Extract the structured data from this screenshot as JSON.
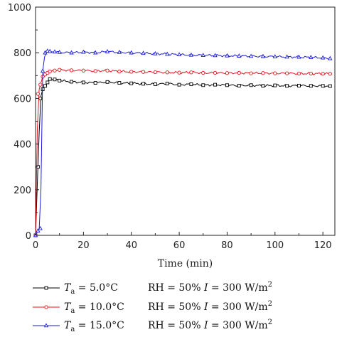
{
  "chart_data": {
    "type": "line",
    "xlabel": "Time (min)",
    "ylabel": "",
    "xlim": [
      0,
      125
    ],
    "ylim": [
      0,
      1000
    ],
    "xticks": [
      0,
      20,
      40,
      60,
      80,
      100,
      120
    ],
    "yticks": [
      0,
      200,
      400,
      600,
      800,
      1000
    ],
    "grid": false,
    "legend_position": "bottom",
    "series": [
      {
        "name": "Ta = 5.0°C   RH = 50% I = 300 W/m2",
        "legend": {
          "t_sym": "T",
          "t_sub": "a",
          "temp": " = 5.0°C",
          "rh": "RH = 50% ",
          "i_sym": "I",
          "i_val": " = 300 W/m",
          "i_sup": "2"
        },
        "color": "#000000",
        "marker": "square",
        "x": [
          0,
          1,
          2,
          3,
          4,
          5,
          6,
          8,
          10,
          15,
          20,
          25,
          30,
          35,
          40,
          45,
          50,
          55,
          60,
          65,
          70,
          75,
          80,
          85,
          90,
          95,
          100,
          105,
          110,
          115,
          120,
          123
        ],
        "y": [
          0,
          300,
          600,
          640,
          655,
          670,
          685,
          683,
          678,
          673,
          670,
          668,
          672,
          668,
          666,
          664,
          662,
          665,
          660,
          662,
          658,
          660,
          658,
          656,
          658,
          655,
          657,
          655,
          656,
          655,
          655,
          654
        ]
      },
      {
        "name": "Ta = 10.0°C   RH = 50% I = 300 W/m2",
        "legend": {
          "t_sym": "T",
          "t_sub": "a",
          "temp": " = 10.0°C",
          "rh": "RH = 50% ",
          "i_sym": "I",
          "i_val": " = 300 W/m",
          "i_sup": "2"
        },
        "color": "#e8141c",
        "marker": "circle",
        "x": [
          0,
          1,
          2,
          3,
          4,
          5,
          6,
          8,
          10,
          15,
          20,
          25,
          30,
          35,
          40,
          45,
          50,
          55,
          60,
          65,
          70,
          75,
          80,
          85,
          90,
          95,
          100,
          105,
          110,
          115,
          120,
          123
        ],
        "y": [
          0,
          620,
          660,
          695,
          705,
          712,
          718,
          722,
          725,
          723,
          722,
          720,
          722,
          718,
          717,
          716,
          715,
          714,
          713,
          714,
          712,
          712,
          711,
          712,
          710,
          711,
          710,
          710,
          709,
          709,
          708,
          708
        ]
      },
      {
        "name": "Ta = 15.0°C   RH = 50% I = 300 W/m2",
        "legend": {
          "t_sym": "T",
          "t_sub": "a",
          "temp": " = 15.0°C",
          "rh": "RH = 50% ",
          "i_sym": "I",
          "i_val": " = 300 W/m",
          "i_sup": "2"
        },
        "color": "#1a1adc",
        "marker": "triangle",
        "x": [
          0,
          1,
          2,
          3,
          4,
          5,
          6,
          8,
          10,
          15,
          20,
          25,
          30,
          35,
          40,
          45,
          50,
          55,
          60,
          65,
          70,
          75,
          80,
          85,
          90,
          95,
          100,
          105,
          110,
          115,
          120,
          123
        ],
        "y": [
          0,
          20,
          30,
          720,
          800,
          808,
          806,
          804,
          802,
          800,
          803,
          800,
          805,
          802,
          800,
          798,
          796,
          794,
          792,
          790,
          789,
          788,
          787,
          786,
          785,
          784,
          783,
          782,
          781,
          780,
          778,
          775
        ]
      }
    ]
  }
}
